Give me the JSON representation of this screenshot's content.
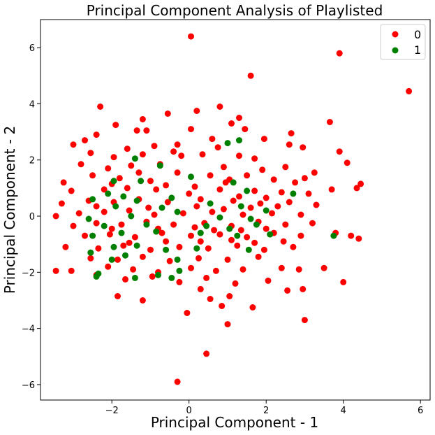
{
  "chart_data": {
    "type": "scatter",
    "title": "Principal Component Analysis of Playlisted",
    "xlabel": "Principal Component - 1",
    "ylabel": "Principal Component - 2",
    "xlim": [
      -3.85,
      6.25
    ],
    "ylim": [
      -6.55,
      7.0
    ],
    "xticks": [
      -2,
      0,
      2,
      4,
      6
    ],
    "yticks": [
      -6,
      -4,
      -2,
      0,
      2,
      4,
      6
    ],
    "xtick_labels": [
      "−2",
      "0",
      "2",
      "4",
      "6"
    ],
    "ytick_labels": [
      "−6",
      "−4",
      "−2",
      "0",
      "2",
      "4",
      "6"
    ],
    "grid": false,
    "legend_position": "top-right",
    "series": [
      {
        "name": "0",
        "color": "#ff0000",
        "points": [
          [
            0.05,
            6.4
          ],
          [
            3.9,
            5.8
          ],
          [
            5.7,
            4.45
          ],
          [
            1.6,
            5.0
          ],
          [
            -2.3,
            3.9
          ],
          [
            0.8,
            3.9
          ],
          [
            -0.55,
            3.65
          ],
          [
            0.2,
            3.75
          ],
          [
            3.65,
            3.35
          ],
          [
            -1.2,
            3.45
          ],
          [
            1.3,
            3.5
          ],
          [
            -1.9,
            3.25
          ],
          [
            -1.35,
            3.05
          ],
          [
            -1.1,
            3.05
          ],
          [
            2.65,
            2.95
          ],
          [
            -2.4,
            2.9
          ],
          [
            1.95,
            2.75
          ],
          [
            -3.0,
            2.55
          ],
          [
            -2.7,
            2.7
          ],
          [
            0.05,
            3.1
          ],
          [
            1.1,
            3.3
          ],
          [
            1.45,
            3.1
          ],
          [
            -0.3,
            2.55
          ],
          [
            0.6,
            2.75
          ],
          [
            -1.6,
            2.4
          ],
          [
            -0.9,
            2.5
          ],
          [
            -0.4,
            2.3
          ],
          [
            0.75,
            2.45
          ],
          [
            2.6,
            2.55
          ],
          [
            2.95,
            2.45
          ],
          [
            3.9,
            2.3
          ],
          [
            -2.55,
            2.25
          ],
          [
            -1.95,
            2.1
          ],
          [
            -1.2,
            2.2
          ],
          [
            -0.2,
            2.15
          ],
          [
            0.35,
            2.2
          ],
          [
            1.3,
            2.15
          ],
          [
            1.7,
            2.05
          ],
          [
            4.1,
            1.9
          ],
          [
            -2.8,
            1.85
          ],
          [
            -2.1,
            1.7
          ],
          [
            -1.5,
            1.8
          ],
          [
            -0.75,
            1.85
          ],
          [
            0.9,
            1.75
          ],
          [
            1.9,
            1.65
          ],
          [
            2.5,
            1.75
          ],
          [
            3.25,
            1.55
          ],
          [
            3.0,
            1.35
          ],
          [
            -3.25,
            1.2
          ],
          [
            -2.5,
            1.45
          ],
          [
            -1.8,
            1.35
          ],
          [
            -1.0,
            1.25
          ],
          [
            -0.3,
            1.55
          ],
          [
            0.55,
            1.45
          ],
          [
            1.05,
            1.3
          ],
          [
            1.5,
            1.45
          ],
          [
            2.2,
            1.3
          ],
          [
            2.75,
            1.2
          ],
          [
            4.45,
            1.15
          ],
          [
            4.35,
            1.0
          ],
          [
            3.7,
            0.95
          ],
          [
            -3.05,
            0.9
          ],
          [
            -2.2,
            0.95
          ],
          [
            -1.6,
            1.0
          ],
          [
            -0.85,
            0.95
          ],
          [
            0.15,
            1.05
          ],
          [
            0.8,
            0.95
          ],
          [
            1.7,
            0.9
          ],
          [
            2.4,
            0.85
          ],
          [
            3.1,
            0.8
          ],
          [
            -3.3,
            0.45
          ],
          [
            -2.6,
            0.55
          ],
          [
            -1.95,
            0.5
          ],
          [
            -1.3,
            0.6
          ],
          [
            -0.55,
            0.5
          ],
          [
            0.3,
            0.6
          ],
          [
            1.15,
            0.55
          ],
          [
            1.85,
            0.45
          ],
          [
            2.6,
            0.5
          ],
          [
            3.3,
            0.4
          ],
          [
            -3.45,
            0.0
          ],
          [
            -2.85,
            0.1
          ],
          [
            -2.2,
            0.15
          ],
          [
            -1.55,
            0.2
          ],
          [
            -0.9,
            0.05
          ],
          [
            -0.15,
            0.1
          ],
          [
            0.6,
            0.15
          ],
          [
            1.4,
            0.05
          ],
          [
            2.15,
            0.1
          ],
          [
            2.9,
            0.05
          ],
          [
            -3.0,
            -0.35
          ],
          [
            -2.4,
            -0.25
          ],
          [
            -1.75,
            -0.3
          ],
          [
            -1.1,
            -0.2
          ],
          [
            -0.4,
            -0.3
          ],
          [
            0.4,
            -0.25
          ],
          [
            1.1,
            -0.35
          ],
          [
            1.8,
            -0.2
          ],
          [
            2.5,
            -0.3
          ],
          [
            3.2,
            -0.25
          ],
          [
            3.8,
            -0.6
          ],
          [
            4.2,
            -0.7
          ],
          [
            4.4,
            -0.8
          ],
          [
            -2.7,
            -0.7
          ],
          [
            -2.05,
            -0.65
          ],
          [
            -1.4,
            -0.75
          ],
          [
            -0.7,
            -0.6
          ],
          [
            0.05,
            -0.7
          ],
          [
            0.8,
            -0.65
          ],
          [
            1.5,
            -0.75
          ],
          [
            2.2,
            -0.6
          ],
          [
            2.9,
            -0.7
          ],
          [
            -3.2,
            -1.1
          ],
          [
            -2.35,
            -1.15
          ],
          [
            -1.7,
            -1.05
          ],
          [
            -1.0,
            -1.2
          ],
          [
            -0.25,
            -1.1
          ],
          [
            0.5,
            -1.15
          ],
          [
            1.25,
            -1.05
          ],
          [
            1.95,
            -1.2
          ],
          [
            2.7,
            -1.1
          ],
          [
            -2.55,
            -1.5
          ],
          [
            -1.85,
            -1.55
          ],
          [
            -1.2,
            -1.45
          ],
          [
            -0.5,
            -1.6
          ],
          [
            0.25,
            -1.5
          ],
          [
            1.0,
            -1.55
          ],
          [
            1.8,
            -1.45
          ],
          [
            -3.45,
            -1.95
          ],
          [
            -3.05,
            -1.95
          ],
          [
            -2.1,
            -1.8
          ],
          [
            -1.45,
            -1.9
          ],
          [
            -0.8,
            -2.0
          ],
          [
            0.05,
            -1.85
          ],
          [
            0.7,
            -1.95
          ],
          [
            1.4,
            -1.9
          ],
          [
            2.4,
            -1.85
          ],
          [
            2.85,
            -1.9
          ],
          [
            3.5,
            -1.85
          ],
          [
            -2.4,
            -2.1
          ],
          [
            -1.65,
            -2.25
          ],
          [
            -0.95,
            -2.15
          ],
          [
            -0.25,
            -2.35
          ],
          [
            0.45,
            -2.2
          ],
          [
            1.2,
            -2.4
          ],
          [
            2.05,
            -2.3
          ],
          [
            4.0,
            -2.35
          ],
          [
            -1.85,
            -2.85
          ],
          [
            -1.2,
            -3.0
          ],
          [
            0.3,
            -2.6
          ],
          [
            0.55,
            -2.95
          ],
          [
            0.85,
            -3.2
          ],
          [
            1.05,
            -2.85
          ],
          [
            1.65,
            -3.25
          ],
          [
            2.55,
            -2.65
          ],
          [
            2.95,
            -2.6
          ],
          [
            -0.05,
            -3.45
          ],
          [
            3.0,
            -3.7
          ],
          [
            1.0,
            -3.85
          ],
          [
            0.45,
            -4.9
          ],
          [
            -0.3,
            -5.9
          ],
          [
            -2.0,
            1.15
          ],
          [
            -1.3,
            1.55
          ],
          [
            -0.6,
            1.1
          ],
          [
            0.0,
            0.8
          ],
          [
            0.95,
            1.2
          ],
          [
            1.3,
            0.7
          ],
          [
            2.0,
            0.65
          ],
          [
            -2.4,
            0.35
          ],
          [
            -1.05,
            0.3
          ],
          [
            0.2,
            0.35
          ],
          [
            0.9,
            0.25
          ],
          [
            1.6,
            0.3
          ],
          [
            2.3,
            0.35
          ],
          [
            -2.0,
            -0.45
          ],
          [
            -0.8,
            -0.45
          ],
          [
            0.15,
            -0.4
          ],
          [
            0.65,
            -0.5
          ],
          [
            1.35,
            -0.5
          ],
          [
            2.0,
            -0.45
          ],
          [
            -1.55,
            -0.95
          ],
          [
            -0.6,
            -0.9
          ],
          [
            0.3,
            -0.9
          ],
          [
            1.1,
            -0.85
          ],
          [
            1.7,
            -0.95
          ],
          [
            2.45,
            -0.9
          ]
        ]
      },
      {
        "name": "1",
        "color": "#008000",
        "points": [
          [
            1.3,
            2.7
          ],
          [
            1.0,
            2.6
          ],
          [
            -1.4,
            2.05
          ],
          [
            -0.75,
            1.8
          ],
          [
            -1.95,
            1.25
          ],
          [
            -1.25,
            1.25
          ],
          [
            0.05,
            1.4
          ],
          [
            1.15,
            1.2
          ],
          [
            -2.1,
            0.8
          ],
          [
            -1.7,
            0.7
          ],
          [
            -1.35,
            0.55
          ],
          [
            -0.45,
            0.65
          ],
          [
            1.5,
            0.9
          ],
          [
            2.7,
            0.8
          ],
          [
            -2.5,
            0.6
          ],
          [
            -1.9,
            0.35
          ],
          [
            -0.7,
            0.3
          ],
          [
            0.55,
            0.45
          ],
          [
            1.35,
            0.35
          ],
          [
            2.0,
            0.2
          ],
          [
            -2.6,
            -0.1
          ],
          [
            -1.5,
            0.0
          ],
          [
            -0.3,
            0.15
          ],
          [
            0.8,
            -0.05
          ],
          [
            1.6,
            -0.1
          ],
          [
            -2.2,
            -0.35
          ],
          [
            -1.1,
            -0.3
          ],
          [
            0.45,
            -0.35
          ],
          [
            1.05,
            -0.45
          ],
          [
            1.75,
            -0.3
          ],
          [
            -2.5,
            -0.7
          ],
          [
            -1.75,
            -0.6
          ],
          [
            -0.85,
            -0.55
          ],
          [
            0.3,
            -0.6
          ],
          [
            1.25,
            -0.7
          ],
          [
            2.1,
            -0.65
          ],
          [
            3.75,
            -0.7
          ],
          [
            -2.55,
            -1.3
          ],
          [
            -1.95,
            -1.1
          ],
          [
            -1.35,
            -1.05
          ],
          [
            -0.6,
            -1.2
          ],
          [
            0.2,
            -1.15
          ],
          [
            1.55,
            -1.2
          ],
          [
            -2.0,
            -1.55
          ],
          [
            -1.65,
            -1.4
          ],
          [
            -0.3,
            -1.55
          ],
          [
            -2.35,
            -2.05
          ],
          [
            -2.4,
            -2.15
          ],
          [
            -0.25,
            -1.95
          ],
          [
            -0.8,
            -2.1
          ],
          [
            -1.4,
            -2.2
          ],
          [
            -0.45,
            -2.2
          ]
        ]
      }
    ]
  }
}
